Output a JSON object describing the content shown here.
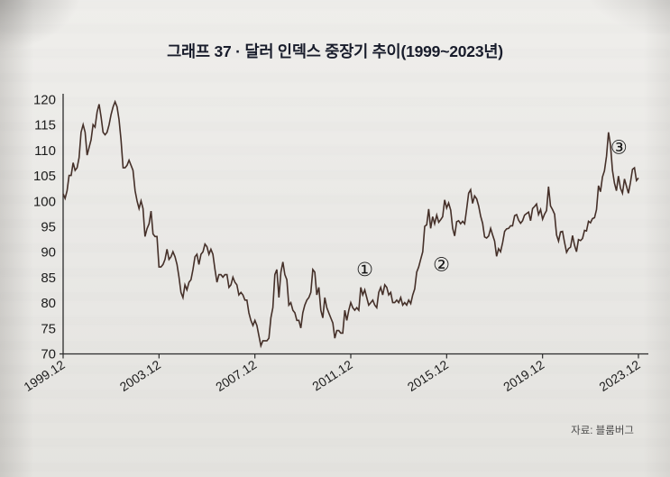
{
  "page": {
    "title": "그래프 37 · 달러 인덱스 중장기 추이(1999~2023년)",
    "source": "자료: 블룸버그"
  },
  "chart_data": {
    "type": "line",
    "title": "달러 인덱스 중장기 추이(1999~2023년)",
    "series_name": "달러 인덱스",
    "x_start": "1999.12",
    "interval": "monthly",
    "values": [
      101.4,
      100.5,
      102.0,
      105.0,
      105.0,
      107.5,
      106.0,
      106.5,
      108.5,
      113.5,
      115.0,
      113.5,
      109.0,
      110.5,
      112.0,
      115.0,
      114.5,
      117.5,
      119.0,
      116.5,
      113.5,
      113.0,
      113.5,
      115.0,
      117.0,
      118.5,
      119.5,
      118.5,
      116.0,
      112.0,
      106.5,
      106.5,
      107.0,
      108.0,
      107.0,
      106.0,
      102.0,
      100.0,
      98.5,
      100.0,
      98.5,
      93.0,
      94.5,
      95.5,
      98.0,
      93.5,
      93.0,
      93.0,
      87.0,
      87.0,
      87.5,
      88.5,
      90.5,
      88.5,
      89.0,
      90.0,
      89.0,
      87.5,
      85.0,
      82.0,
      81.0,
      83.5,
      82.5,
      84.0,
      84.5,
      86.5,
      89.0,
      89.5,
      87.5,
      89.5,
      90.0,
      91.5,
      91.0,
      89.5,
      90.5,
      89.5,
      86.5,
      84.0,
      85.5,
      85.5,
      85.0,
      85.5,
      85.5,
      83.0,
      83.5,
      85.0,
      84.0,
      83.5,
      81.5,
      82.0,
      81.5,
      80.5,
      80.5,
      78.0,
      76.5,
      75.5,
      76.5,
      75.5,
      73.5,
      71.5,
      72.5,
      72.5,
      72.5,
      73.0,
      77.0,
      79.0,
      85.5,
      86.5,
      81.0,
      86.0,
      88.0,
      85.5,
      84.5,
      79.5,
      80.0,
      78.5,
      78.0,
      76.5,
      76.5,
      75.0,
      78.0,
      79.5,
      80.5,
      81.0,
      82.0,
      86.5,
      86.0,
      81.5,
      83.0,
      78.5,
      77.0,
      81.0,
      79.0,
      78.0,
      77.0,
      76.0,
      73.0,
      74.5,
      74.5,
      74.0,
      74.0,
      78.5,
      76.5,
      78.5,
      80.0,
      79.0,
      78.5,
      79.0,
      78.5,
      83.0,
      81.5,
      82.5,
      81.0,
      79.5,
      80.0,
      80.5,
      79.5,
      79.0,
      82.0,
      83.0,
      81.5,
      83.5,
      83.0,
      81.5,
      82.0,
      80.0,
      80.0,
      80.5,
      80.0,
      81.0,
      79.5,
      80.0,
      79.5,
      80.5,
      79.8,
      81.5,
      82.7,
      86.0,
      87.0,
      88.5,
      90.0,
      95.0,
      95.3,
      98.4,
      94.6,
      96.9,
      95.5,
      97.2,
      95.8,
      96.3,
      96.9,
      100.2,
      98.6,
      99.6,
      98.2,
      94.6,
      93.1,
      95.9,
      96.1,
      95.5,
      96.0,
      95.5,
      98.4,
      101.5,
      102.2,
      99.5,
      101.0,
      100.4,
      99.0,
      97.0,
      95.6,
      92.9,
      92.7,
      93.1,
      94.6,
      93.3,
      92.1,
      89.1,
      90.6,
      90.0,
      91.8,
      94.0,
      94.5,
      94.6,
      95.1,
      95.1,
      97.1,
      97.3,
      96.2,
      95.6,
      96.1,
      97.2,
      97.5,
      97.8,
      96.1,
      98.5,
      98.9,
      99.4,
      97.3,
      98.3,
      96.4,
      97.4,
      98.1,
      102.8,
      99.0,
      98.3,
      97.4,
      93.3,
      92.1,
      93.9,
      94.0,
      91.9,
      89.9,
      90.6,
      90.9,
      93.2,
      91.3,
      90.0,
      92.4,
      92.2,
      92.6,
      94.2,
      94.1,
      96.0,
      95.7,
      96.5,
      96.7,
      98.3,
      103.0,
      101.8,
      104.7,
      105.9,
      108.8,
      113.5,
      111.0,
      106.0,
      103.5,
      102.0,
      104.9,
      102.5,
      101.5,
      104.3,
      102.9,
      101.5,
      103.6,
      106.2,
      106.5,
      104.0,
      104.5
    ],
    "x_tick_labels": [
      "1999.12",
      "2003.12",
      "2007.12",
      "2011.12",
      "2015.12",
      "2019.12",
      "2023.12"
    ],
    "y_ticks": [
      120,
      115,
      110,
      105,
      100,
      95,
      90,
      85,
      80,
      75,
      70
    ],
    "ylim": [
      70,
      120
    ],
    "grid": false,
    "legend": "none",
    "line_color": "#453029",
    "axis_color": "#2b2b2b",
    "label_color": "#1d1d1d",
    "annotations": [
      {
        "label": "①",
        "x": 2012.5,
        "y": 86.5
      },
      {
        "label": "②",
        "x": 2015.7,
        "y": 87.5
      },
      {
        "label": "③",
        "x": 2023.1,
        "y": 110.5
      }
    ]
  }
}
